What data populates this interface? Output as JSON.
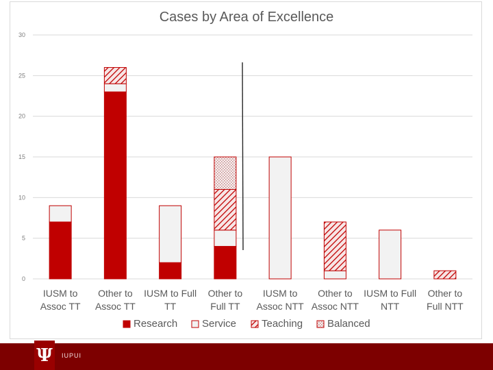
{
  "chart_data": {
    "type": "bar",
    "stacked": true,
    "title": "Cases by Area of Excellence",
    "xlabel": "",
    "ylabel": "",
    "ylim": [
      0,
      30
    ],
    "yticks": [
      0,
      5,
      10,
      15,
      20,
      25,
      30
    ],
    "grid": true,
    "legend_position": "bottom",
    "categories": [
      [
        "IUSM to",
        "Assoc TT"
      ],
      [
        "Other to",
        "Assoc TT"
      ],
      [
        "IUSM to Full",
        "TT"
      ],
      [
        "Other to",
        "Full TT"
      ],
      [
        "IUSM to",
        "Assoc NTT"
      ],
      [
        "Other to",
        "Assoc NTT"
      ],
      [
        "IUSM to Full",
        "NTT"
      ],
      [
        "Other to",
        "Full NTT"
      ]
    ],
    "series": [
      {
        "name": "Research",
        "values": [
          7,
          23,
          2,
          4,
          0,
          0,
          0,
          0
        ],
        "color": "#c00000",
        "pattern": "solid"
      },
      {
        "name": "Service",
        "values": [
          2,
          1,
          7,
          2,
          15,
          1,
          6,
          0
        ],
        "color": "#f2f2f2",
        "pattern": "plain"
      },
      {
        "name": "Teaching",
        "values": [
          0,
          2,
          0,
          5,
          0,
          6,
          0,
          1
        ],
        "color": "#c00000",
        "pattern": "hatch"
      },
      {
        "name": "Balanced",
        "values": [
          0,
          0,
          0,
          4,
          0,
          0,
          0,
          0
        ],
        "color": "#c00000",
        "pattern": "dots"
      }
    ],
    "divider_after_category": 4
  },
  "footer": {
    "logo_glyph": "Ψ",
    "text": "IUPUI",
    "bar_color": "#7d0000",
    "logo_color": "#990000"
  }
}
